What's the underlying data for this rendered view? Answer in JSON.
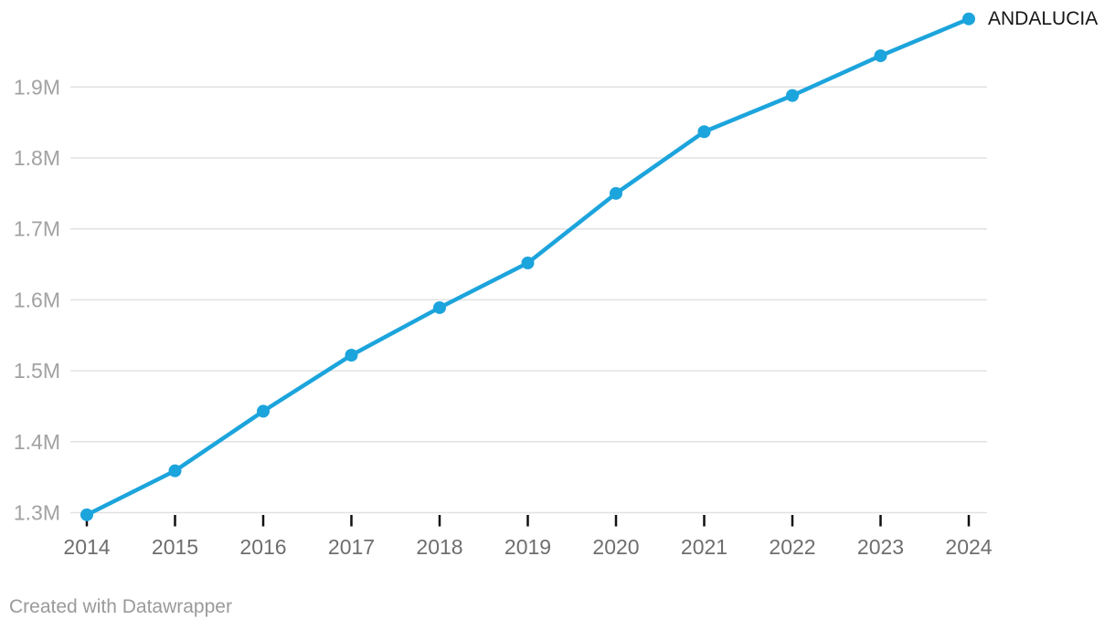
{
  "chart_data": {
    "type": "line",
    "title": "",
    "xlabel": "",
    "ylabel": "",
    "categories": [
      "2014",
      "2015",
      "2016",
      "2017",
      "2018",
      "2019",
      "2020",
      "2021",
      "2022",
      "2023",
      "2024"
    ],
    "series": [
      {
        "name": "ANDALUCIA",
        "color": "#1CA4DC",
        "values": [
          1297000,
          1359000,
          1443000,
          1522000,
          1589000,
          1652000,
          1750000,
          1837000,
          1888000,
          1944000,
          1996000
        ]
      }
    ],
    "y_axis": {
      "tick_values": [
        1300000,
        1400000,
        1500000,
        1600000,
        1700000,
        1800000,
        1900000
      ],
      "tick_labels": [
        "1.3M",
        "1.4M",
        "1.5M",
        "1.6M",
        "1.7M",
        "1.8M",
        "1.9M"
      ],
      "range": [
        1297000,
        2010000
      ]
    },
    "grid": "horizontal-only",
    "legend": "direct-label-at-line-end",
    "markers": "filled-circles"
  },
  "colors": {
    "background": "#ffffff",
    "line": "#1CA4DC",
    "grid": "#e2e2e2",
    "tick_mark": "#111111",
    "y_label": "#a2a2a2",
    "x_label": "#6e6e6e",
    "series_label": "#161616",
    "credit": "#9a9a9a"
  },
  "footer": {
    "credit": "Created with Datawrapper"
  }
}
